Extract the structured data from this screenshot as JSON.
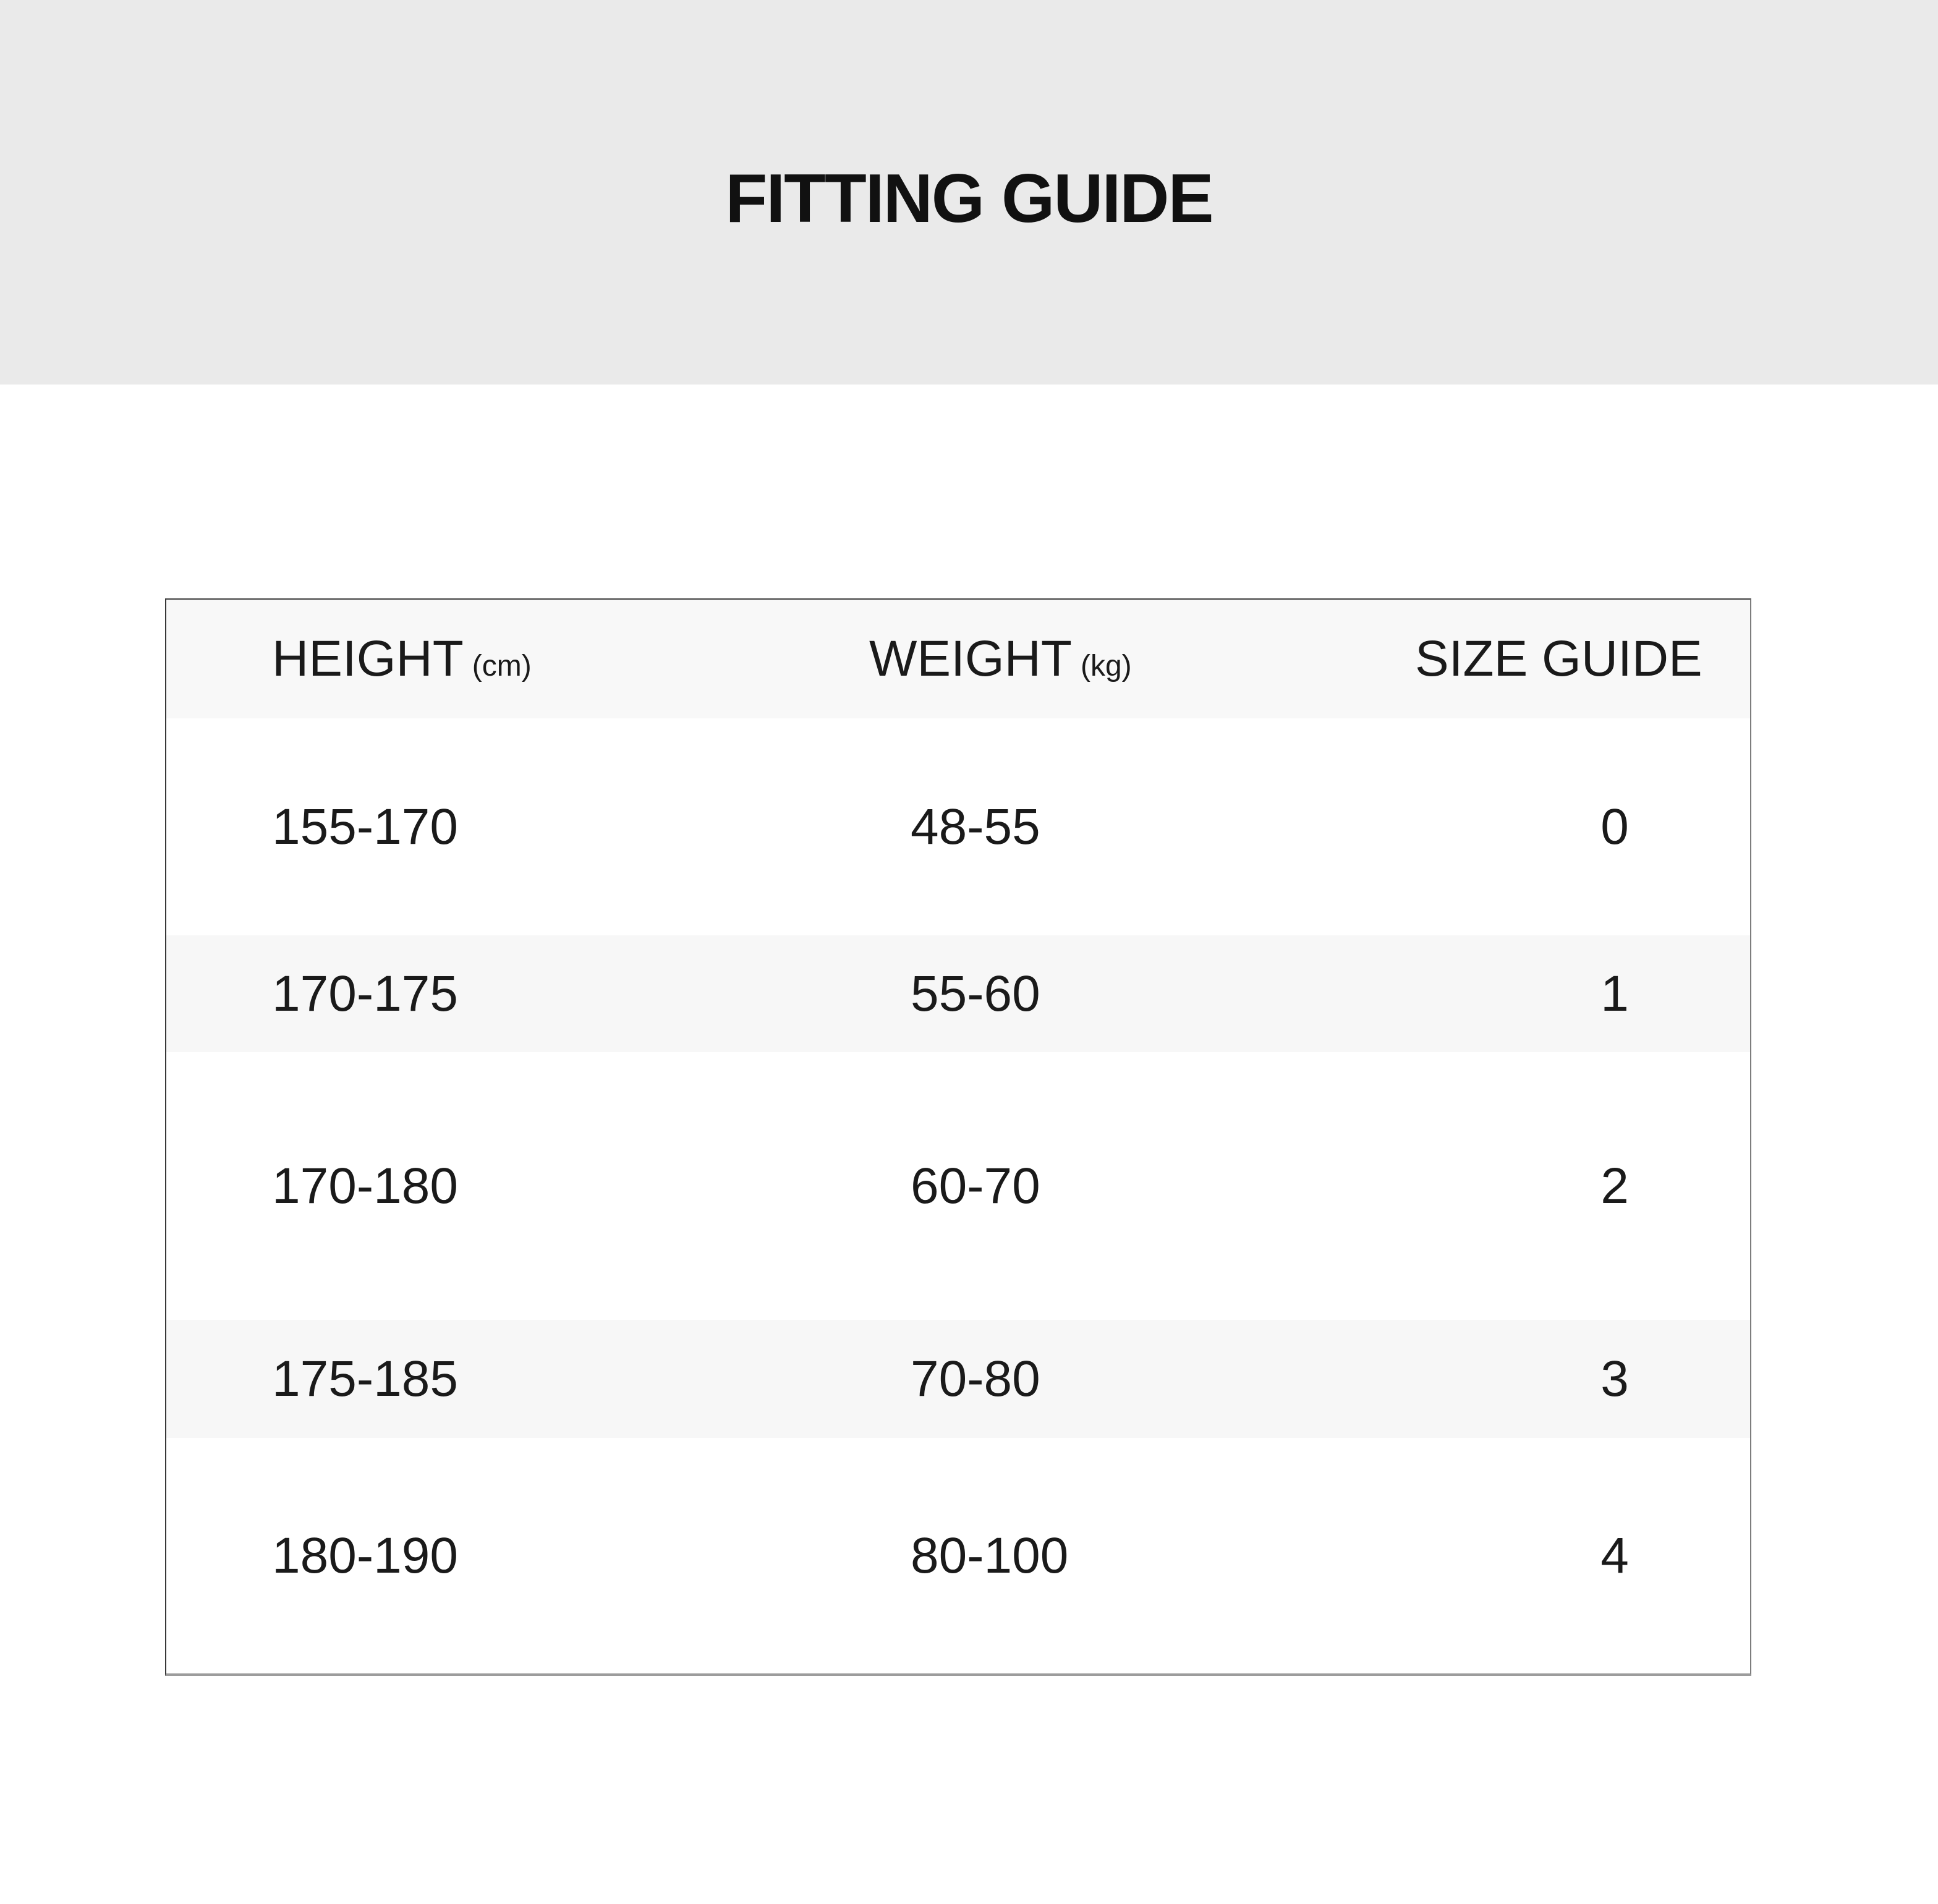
{
  "hero": {
    "title": "FITTING GUIDE",
    "bg_color": "#eaeaea",
    "text_color": "#111111"
  },
  "table": {
    "header_bg": "#f8f8f8",
    "stripe_bg": "#f7f7f7",
    "text_color": "#1a1a1a",
    "border_color": "#3d3d3d",
    "columns": [
      {
        "label": "HEIGHT",
        "unit": "(cm)"
      },
      {
        "label": "WEIGHT",
        "unit": "(kg)"
      },
      {
        "label": "SIZE GUIDE",
        "unit": ""
      }
    ],
    "rows": [
      {
        "height": "155-170",
        "weight": "48-55",
        "size": "0"
      },
      {
        "height": "170-175",
        "weight": "55-60",
        "size": "1"
      },
      {
        "height": "170-180",
        "weight": "60-70",
        "size": "2"
      },
      {
        "height": "175-185",
        "weight": "70-80",
        "size": "3"
      },
      {
        "height": "180-190",
        "weight": "80-100",
        "size": "4"
      }
    ]
  }
}
